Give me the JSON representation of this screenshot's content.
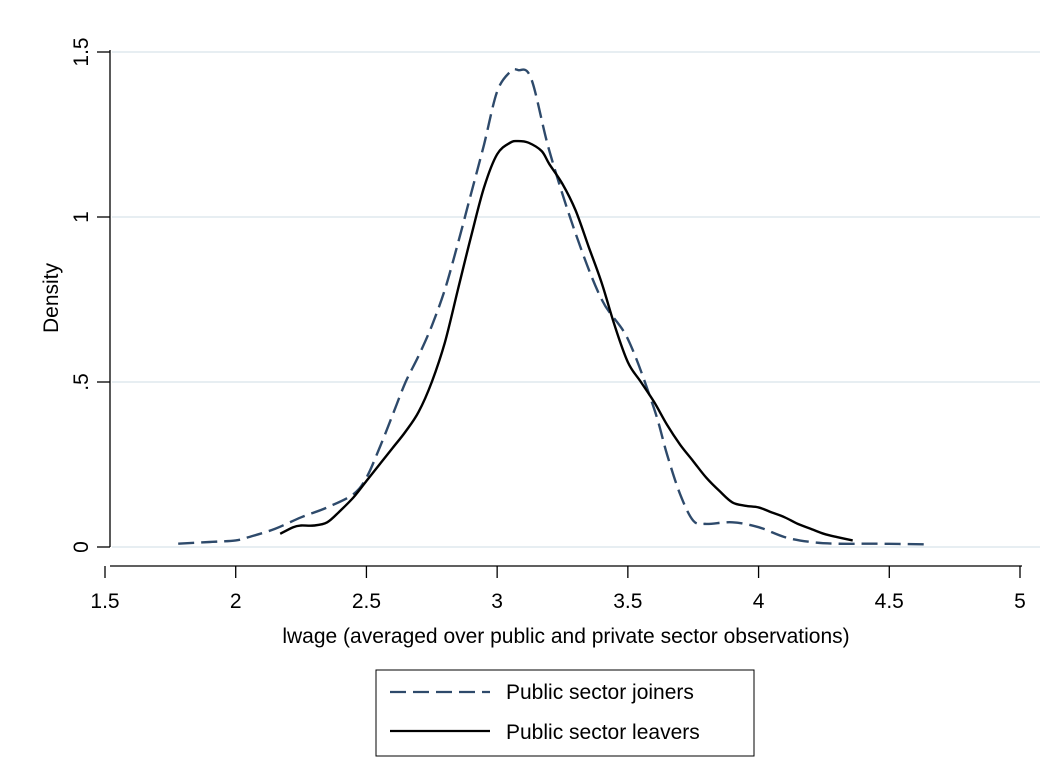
{
  "chart_data": {
    "type": "line",
    "xlabel": "lwage (averaged over public and private sector observations)",
    "ylabel": "Density",
    "xlim": [
      1.5,
      5
    ],
    "ylim": [
      0,
      1.5
    ],
    "x_ticks": [
      1.5,
      2,
      2.5,
      3,
      3.5,
      4,
      4.5,
      5
    ],
    "x_tick_labels": [
      "1.5",
      "2",
      "2.5",
      "3",
      "3.5",
      "4",
      "4.5",
      "5"
    ],
    "y_ticks": [
      0,
      0.5,
      1,
      1.5
    ],
    "y_tick_labels": [
      "0",
      ".5",
      "1",
      "1.5"
    ],
    "grid": "horizontal",
    "legend_position": "bottom",
    "colors": {
      "joiners": "#2e4a6b",
      "leavers": "#000000",
      "grid": "#dfe9ee"
    },
    "series": [
      {
        "name": "Public sector joiners",
        "style": "dashed",
        "x": [
          1.78,
          1.9,
          2.0,
          2.05,
          2.15,
          2.25,
          2.35,
          2.45,
          2.5,
          2.55,
          2.6,
          2.65,
          2.7,
          2.75,
          2.8,
          2.85,
          2.9,
          2.95,
          3.0,
          3.05,
          3.08,
          3.13,
          3.2,
          3.3,
          3.4,
          3.5,
          3.6,
          3.65,
          3.7,
          3.75,
          3.8,
          3.9,
          4.0,
          4.1,
          4.2,
          4.3,
          4.45,
          4.65
        ],
        "values": [
          0.01,
          0.015,
          0.02,
          0.03,
          0.055,
          0.09,
          0.12,
          0.16,
          0.21,
          0.3,
          0.4,
          0.5,
          0.58,
          0.67,
          0.78,
          0.92,
          1.07,
          1.22,
          1.38,
          1.44,
          1.445,
          1.42,
          1.2,
          0.95,
          0.75,
          0.63,
          0.42,
          0.28,
          0.16,
          0.08,
          0.07,
          0.075,
          0.06,
          0.03,
          0.015,
          0.01,
          0.01,
          0.008
        ]
      },
      {
        "name": "Public sector leavers",
        "style": "solid",
        "x": [
          2.17,
          2.22,
          2.25,
          2.3,
          2.35,
          2.4,
          2.45,
          2.5,
          2.55,
          2.6,
          2.65,
          2.7,
          2.75,
          2.8,
          2.85,
          2.9,
          2.95,
          3.0,
          3.05,
          3.08,
          3.12,
          3.17,
          3.2,
          3.25,
          3.3,
          3.35,
          3.4,
          3.45,
          3.5,
          3.55,
          3.6,
          3.65,
          3.7,
          3.75,
          3.8,
          3.85,
          3.9,
          3.95,
          4.0,
          4.05,
          4.1,
          4.15,
          4.2,
          4.25,
          4.3,
          4.36
        ],
        "values": [
          0.04,
          0.06,
          0.065,
          0.065,
          0.075,
          0.11,
          0.15,
          0.2,
          0.25,
          0.3,
          0.35,
          0.41,
          0.5,
          0.62,
          0.78,
          0.94,
          1.09,
          1.19,
          1.225,
          1.23,
          1.225,
          1.2,
          1.16,
          1.1,
          1.02,
          0.91,
          0.8,
          0.67,
          0.56,
          0.5,
          0.44,
          0.37,
          0.31,
          0.26,
          0.21,
          0.17,
          0.135,
          0.125,
          0.12,
          0.105,
          0.09,
          0.07,
          0.055,
          0.04,
          0.03,
          0.02
        ]
      }
    ]
  }
}
